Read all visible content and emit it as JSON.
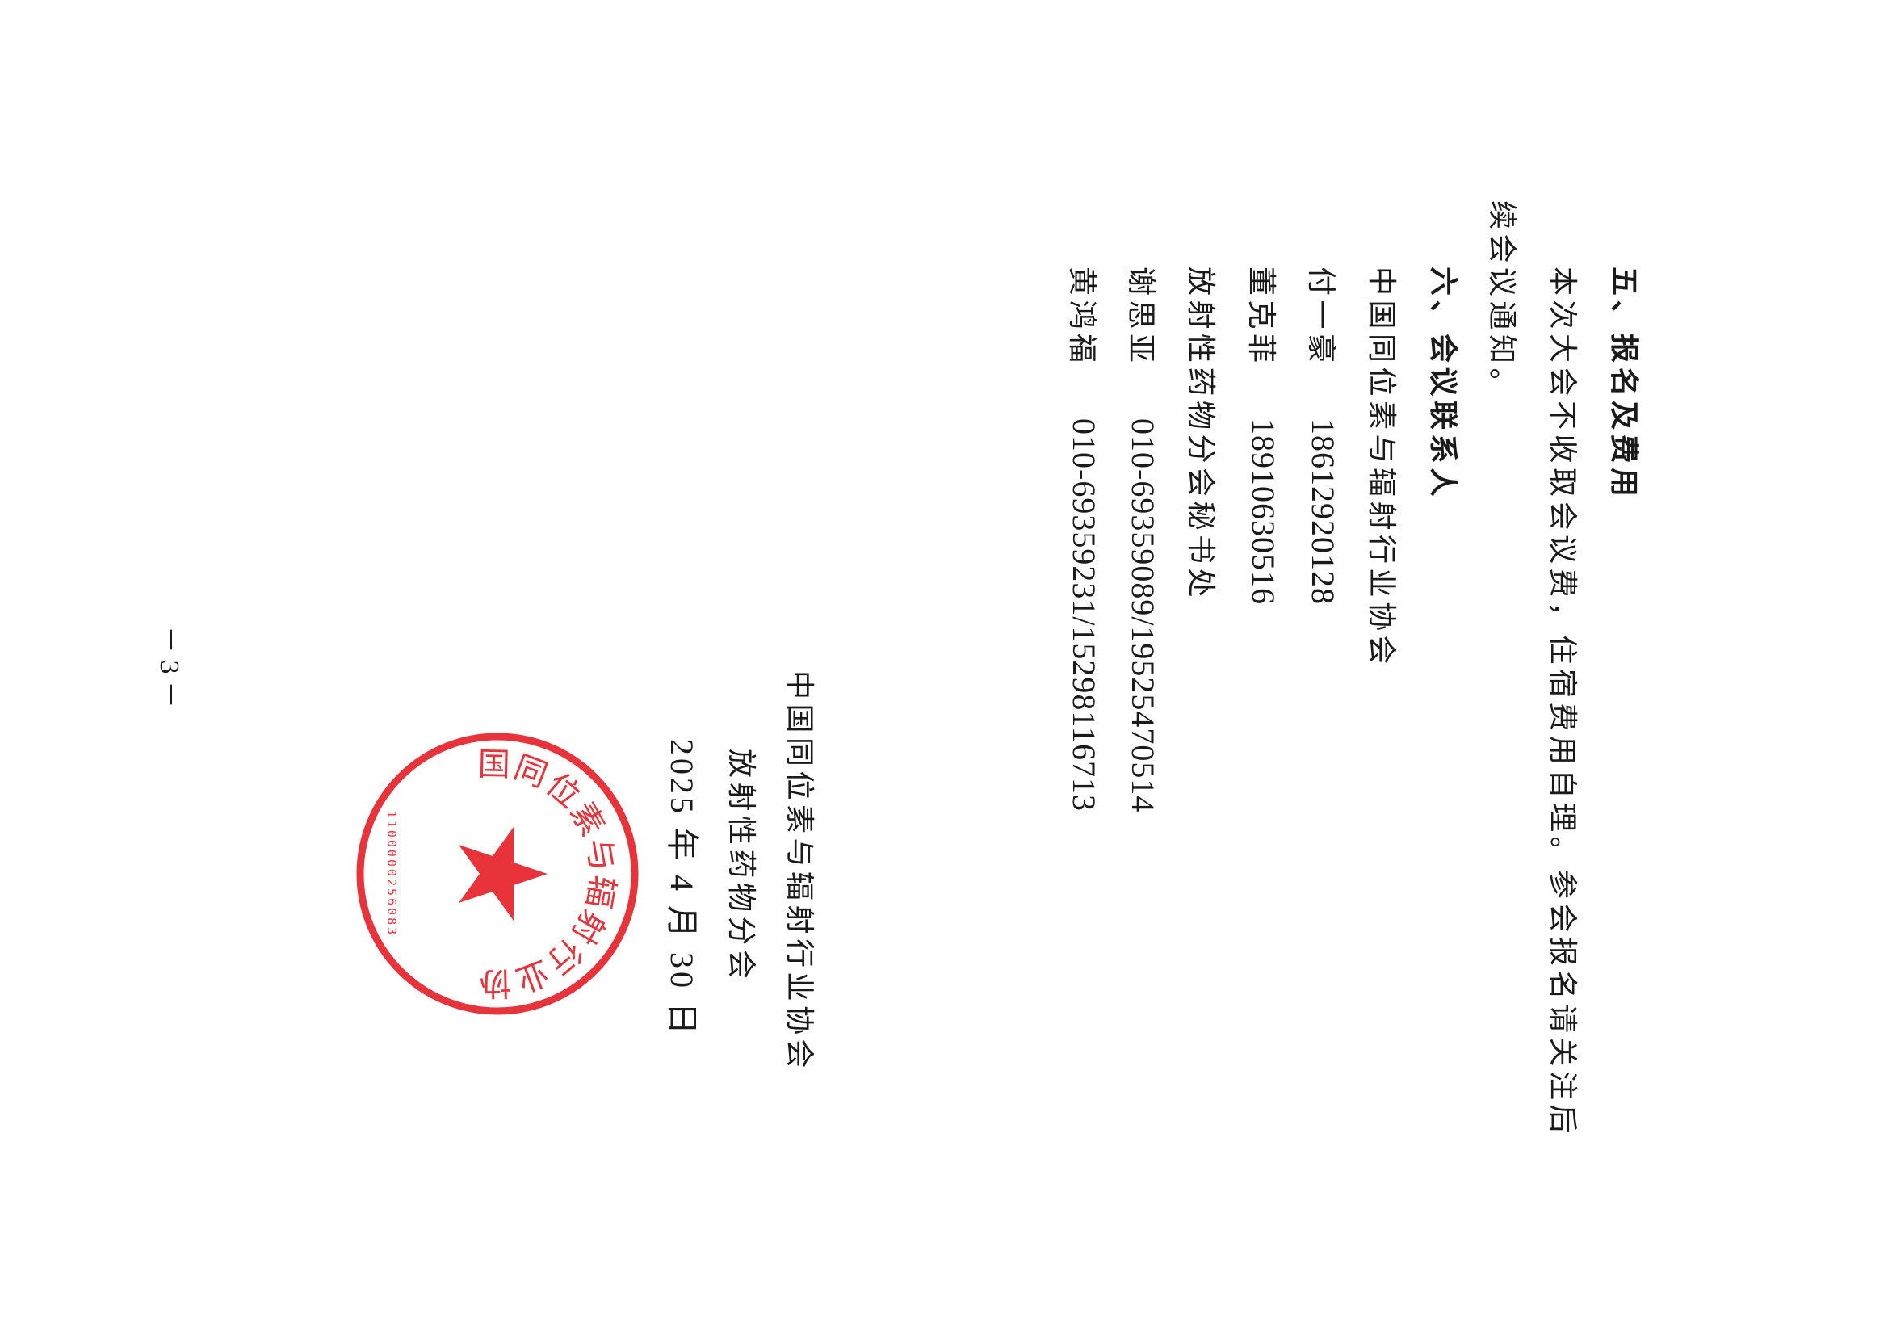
{
  "section5": {
    "heading": "五、报名及费用",
    "para_line1": "本次大会不收取会议费，住宿费用自理。参会报名请关注后",
    "para_line2": "续会议通知。"
  },
  "section6": {
    "heading": "六、会议联系人",
    "org1": "中国同位素与辐射行业协会",
    "contacts1": [
      {
        "name": "付一豪",
        "phone": "18612920128"
      },
      {
        "name": "董克菲",
        "phone": "18910630516"
      }
    ],
    "org2": "放射性药物分会秘书处",
    "contacts2": [
      {
        "name": "谢思亚",
        "phone": "010-69359089/19525470514"
      },
      {
        "name": "黄鸿福",
        "phone": "010-69359231/15298116713"
      }
    ]
  },
  "signature": {
    "org": "中国同位素与辐射行业协会",
    "branch": "放射性药物分会",
    "date": "2025 年 4 月 30 日"
  },
  "stamp": {
    "text": "中国同位素与辐射行业协会",
    "number": "1100000256083",
    "color": "#e8333b"
  },
  "page_number": "－ 3 －"
}
